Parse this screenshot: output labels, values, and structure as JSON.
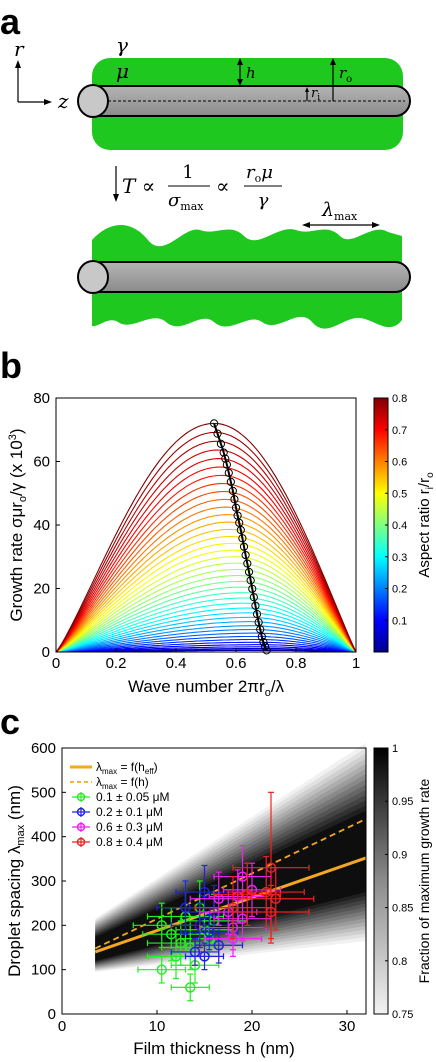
{
  "panels": {
    "a": {
      "letter": "a",
      "axis_r": "r",
      "axis_z": "z",
      "label_gamma": "γ",
      "label_mu": "μ",
      "label_h": "h",
      "label_ro": "r",
      "label_ro_sub": "o",
      "label_ri": "r",
      "label_ri_sub": "i",
      "eq_T": "T ∝",
      "eq_frac1_num": "1",
      "eq_frac1_den": "σ",
      "eq_frac1_den_sub": "max",
      "eq_prop": "∝",
      "eq_frac2_num": "r",
      "eq_frac2_num_sub": "o",
      "eq_frac2_num_tail": "μ",
      "eq_frac2_den": "γ",
      "lambda_label": "λ",
      "lambda_sub": "max",
      "film_color": "#1ec81e",
      "fiber_color": "#9a9a9a"
    },
    "b": {
      "letter": "b",
      "xlabel": "Wave number 2πr",
      "xlabel_sub": "o",
      "xlabel_tail": "/λ",
      "ylabel": "Growth rate σμr",
      "ylabel_sub": "o",
      "ylabel_tail": "/γ  (x 10",
      "ylabel_sup": "3",
      "ylabel_end": ")",
      "colorbar_label": "Aspect ratio r",
      "colorbar_label_sub1": "i",
      "colorbar_label_mid": "/r",
      "colorbar_label_sub2": "o",
      "xticks": [
        "0",
        "0.2",
        "0.4",
        "0.6",
        "0.8",
        "1"
      ],
      "yticks": [
        "0",
        "20",
        "40",
        "60",
        "80"
      ],
      "cticks": [
        "0.1",
        "0.2",
        "0.3",
        "0.4",
        "0.5",
        "0.6",
        "0.7",
        "0.8"
      ]
    },
    "c": {
      "letter": "c",
      "xlabel": "Film thickness h (nm)",
      "ylabel": "Droplet spacing λ",
      "ylabel_sub": "max",
      "ylabel_tail": " (nm)",
      "colorbar_label": "Fraction of maximum growth rate",
      "xticks": [
        "0",
        "10",
        "20",
        "30"
      ],
      "yticks": [
        "0",
        "100",
        "200",
        "300",
        "400",
        "500",
        "600"
      ],
      "cticks": [
        "0.75",
        "0.8",
        "0.85",
        "0.9",
        "0.95",
        "1"
      ],
      "legend": [
        {
          "text": "λ",
          "sub": "max",
          "tail": " = f(h",
          "sub2": "eff",
          "end": ")",
          "color": "#f5a623",
          "style": "solid"
        },
        {
          "text": "λ",
          "sub": "max",
          "tail": " = f(h)",
          "sub2": "",
          "end": "",
          "color": "#f5a623",
          "style": "dashed"
        },
        {
          "text": "0.1 ± 0.05 μM",
          "color": "#22ee22",
          "style": "marker"
        },
        {
          "text": "0.2 ± 0.1 μM",
          "color": "#2222dd",
          "style": "marker"
        },
        {
          "text": "0.6 ± 0.3 μM",
          "color": "#ee22ee",
          "style": "marker"
        },
        {
          "text": "0.8 ± 0.4 μM",
          "color": "#ee2222",
          "style": "marker"
        }
      ]
    }
  },
  "chart_data": [
    {
      "type": "line",
      "title": "",
      "xlabel": "Wave number 2πr_o/λ",
      "ylabel": "Growth rate σμr_o/γ (x 10^3)",
      "xlim": [
        0,
        1
      ],
      "ylim": [
        0,
        80
      ],
      "colorbar": {
        "label": "Aspect ratio r_i/r_o",
        "range": [
          0,
          0.8
        ]
      },
      "series_count": 41,
      "max_curve": {
        "name": "r_i/r_o = 0.8",
        "peak_x": 0.527,
        "peak_y": 72
      },
      "peak_locus": {
        "x": [
          0.527,
          0.557,
          0.571,
          0.589,
          0.603,
          0.617,
          0.631,
          0.646,
          0.66,
          0.674,
          0.688,
          0.702
        ],
        "y": [
          72,
          63.5,
          58.5,
          51,
          44,
          38,
          31,
          24,
          17,
          10,
          4,
          0.5
        ]
      },
      "grid": false
    },
    {
      "type": "scatter",
      "title": "",
      "xlabel": "Film thickness h (nm)",
      "ylabel": "Droplet spacing λ_max (nm)",
      "xlim": [
        0,
        32
      ],
      "ylim": [
        0,
        600
      ],
      "legend_position": "top-left",
      "lines": [
        {
          "name": "λmax = f(heff)",
          "style": "solid",
          "x": [
            3.5,
            32
          ],
          "y": [
            140,
            352
          ]
        },
        {
          "name": "λmax = f(h)",
          "style": "dashed",
          "x": [
            3.5,
            32
          ],
          "y": [
            148,
            440
          ]
        }
      ],
      "series": [
        {
          "name": "0.1 ± 0.05 μM",
          "color": "#22ee22",
          "points": [
            {
              "x": 10.5,
              "y": 100,
              "xerr": 2.5,
              "yerr": 30
            },
            {
              "x": 10.5,
              "y": 200,
              "xerr": 3,
              "yerr": 50
            },
            {
              "x": 11.5,
              "y": 180,
              "xerr": 3,
              "yerr": 60
            },
            {
              "x": 12,
              "y": 130,
              "xerr": 3,
              "yerr": 50
            },
            {
              "x": 12.5,
              "y": 160,
              "xerr": 3.5,
              "yerr": 50
            },
            {
              "x": 13,
              "y": 220,
              "xerr": 4,
              "yerr": 80
            },
            {
              "x": 13.5,
              "y": 60,
              "xerr": 2,
              "yerr": 30
            },
            {
              "x": 13.5,
              "y": 150,
              "xerr": 3,
              "yerr": 50
            },
            {
              "x": 14,
              "y": 110,
              "xerr": 2.5,
              "yerr": 40
            },
            {
              "x": 14.5,
              "y": 240,
              "xerr": 4,
              "yerr": 60
            },
            {
              "x": 15,
              "y": 190,
              "xerr": 3,
              "yerr": 50
            },
            {
              "x": 15.5,
              "y": 170,
              "xerr": 3,
              "yerr": 40
            },
            {
              "x": 16,
              "y": 210,
              "xerr": 3.5,
              "yerr": 60
            }
          ]
        },
        {
          "name": "0.2 ± 0.1 μM",
          "color": "#2222dd",
          "points": [
            {
              "x": 13,
              "y": 240,
              "xerr": 3,
              "yerr": 60
            },
            {
              "x": 14,
              "y": 140,
              "xerr": 2.5,
              "yerr": 30
            },
            {
              "x": 14.5,
              "y": 200,
              "xerr": 3,
              "yerr": 50
            },
            {
              "x": 15,
              "y": 130,
              "xerr": 2,
              "yerr": 30
            },
            {
              "x": 15,
              "y": 275,
              "xerr": 3,
              "yerr": 60
            },
            {
              "x": 15.5,
              "y": 185,
              "xerr": 3,
              "yerr": 40
            },
            {
              "x": 16,
              "y": 230,
              "xerr": 3,
              "yerr": 60
            },
            {
              "x": 16.5,
              "y": 155,
              "xerr": 2.5,
              "yerr": 40
            }
          ]
        },
        {
          "name": "0.6 ± 0.3 μM",
          "color": "#ee22ee",
          "points": [
            {
              "x": 16.5,
              "y": 260,
              "xerr": 3,
              "yerr": 60
            },
            {
              "x": 17.5,
              "y": 230,
              "xerr": 3,
              "yerr": 50
            },
            {
              "x": 18,
              "y": 170,
              "xerr": 3,
              "yerr": 40
            },
            {
              "x": 18,
              "y": 195,
              "xerr": 3.5,
              "yerr": 50
            },
            {
              "x": 18.5,
              "y": 265,
              "xerr": 3,
              "yerr": 60
            },
            {
              "x": 19,
              "y": 310,
              "xerr": 3,
              "yerr": 70
            },
            {
              "x": 19,
              "y": 215,
              "xerr": 3,
              "yerr": 50
            },
            {
              "x": 20,
              "y": 280,
              "xerr": 3,
              "yerr": 60
            }
          ]
        },
        {
          "name": "0.8 ± 0.4 μM",
          "color": "#ee2222",
          "points": [
            {
              "x": 18,
              "y": 240,
              "xerr": 4,
              "yerr": 70
            },
            {
              "x": 19.5,
              "y": 270,
              "xerr": 3.5,
              "yerr": 70
            },
            {
              "x": 21.5,
              "y": 275,
              "xerr": 4,
              "yerr": 80
            },
            {
              "x": 22,
              "y": 230,
              "xerr": 4,
              "yerr": 60
            },
            {
              "x": 22,
              "y": 330,
              "xerr": 4,
              "yerr": 170
            },
            {
              "x": 22.5,
              "y": 260,
              "xerr": 4,
              "yerr": 70
            }
          ]
        }
      ],
      "colorbar": {
        "label": "Fraction of maximum growth rate",
        "range": [
          0.75,
          1
        ]
      },
      "grid": false
    }
  ]
}
